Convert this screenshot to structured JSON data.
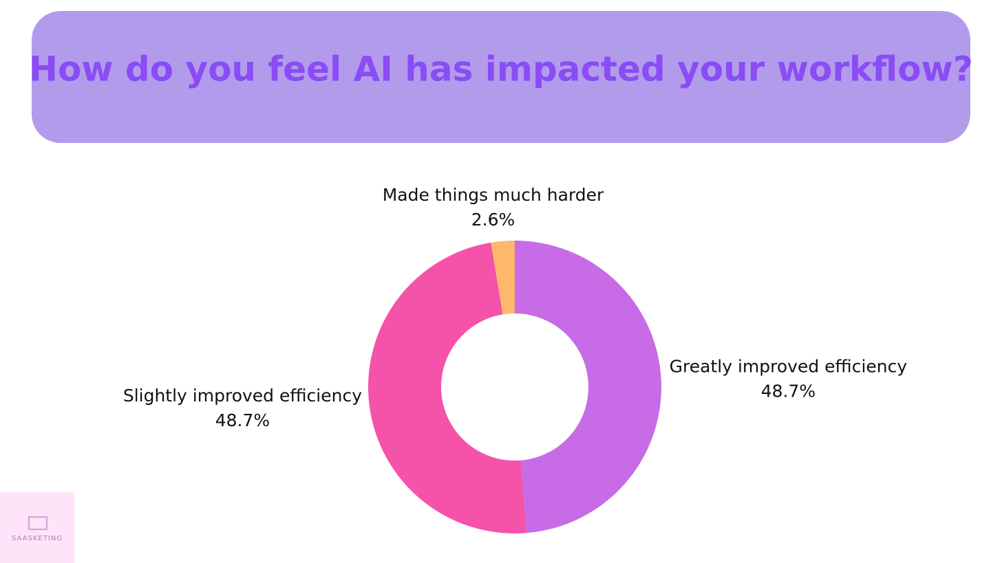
{
  "chart_data": {
    "type": "donut",
    "title": "How do you feel AI has impacted your workflow?",
    "categories": [
      "Greatly improved efficiency",
      "Slightly improved efficiency",
      "Made things much harder"
    ],
    "values": [
      48.7,
      48.7,
      2.6
    ],
    "value_labels": [
      "48.7%",
      "48.7%",
      "2.6%"
    ],
    "colors": [
      "#c86be6",
      "#f552aa",
      "#ffb86b"
    ]
  },
  "logo": {
    "text": "SAASKETING"
  }
}
